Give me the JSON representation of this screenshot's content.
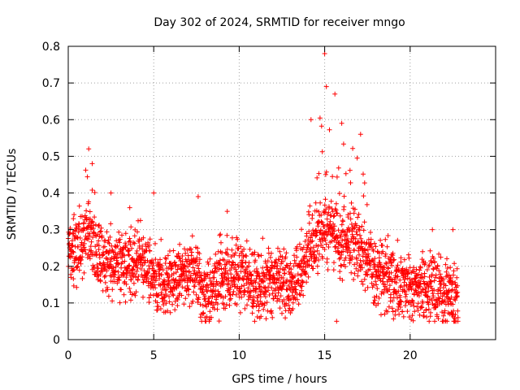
{
  "chart_data": {
    "type": "scatter",
    "title": "Day 302 of 2024, SRMTID for receiver mngo",
    "xlabel": "GPS time / hours",
    "ylabel": "SRMTID / TECUs",
    "xlim": [
      0,
      25
    ],
    "ylim": [
      0,
      0.8
    ],
    "xticks": [
      0,
      5,
      10,
      15,
      20
    ],
    "yticks": [
      0,
      0.1,
      0.2,
      0.3,
      0.4,
      0.5,
      0.6,
      0.7,
      0.8
    ],
    "grid": true,
    "marker": "+",
    "marker_color": "#ff0000",
    "series": [
      {
        "name": "SRMTID",
        "x_range_hours": [
          0,
          22.8
        ],
        "baseline_mean": 0.17,
        "typical_spread": [
          0.05,
          0.35
        ],
        "features": [
          {
            "x": 0.3,
            "y": 0.33,
            "desc": "early values"
          },
          {
            "x": 1.2,
            "y": 0.52,
            "desc": "peak"
          },
          {
            "x": 1.4,
            "y": 0.48,
            "desc": "peak"
          },
          {
            "x": 2.5,
            "y": 0.4
          },
          {
            "x": 3.6,
            "y": 0.36
          },
          {
            "x": 5.0,
            "y": 0.4
          },
          {
            "x": 7.6,
            "y": 0.39
          },
          {
            "x": 8.0,
            "y": 0.06,
            "desc": "minimum"
          },
          {
            "x": 9.3,
            "y": 0.35
          },
          {
            "x": 14.2,
            "y": 0.6
          },
          {
            "x": 15.0,
            "y": 0.78,
            "desc": "maximum"
          },
          {
            "x": 15.1,
            "y": 0.69
          },
          {
            "x": 15.6,
            "y": 0.67
          },
          {
            "x": 16.0,
            "y": 0.59
          },
          {
            "x": 17.1,
            "y": 0.56
          },
          {
            "x": 15.7,
            "y": 0.05,
            "desc": "minimum"
          },
          {
            "x": 21.3,
            "y": 0.3
          },
          {
            "x": 22.5,
            "y": 0.3
          },
          {
            "x": 22.8,
            "y": 0.06,
            "desc": "last values"
          }
        ]
      }
    ]
  }
}
